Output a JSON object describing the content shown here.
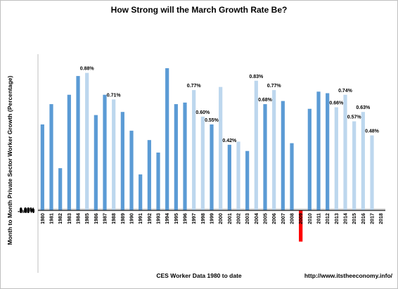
{
  "chart_data": {
    "type": "bar",
    "title": "How Strong will the March Growth Rate Be?",
    "xlabel": "CES Worker Data 1980 to date",
    "ylabel": "Month to Month Private Sector Worker Growth (Percentage)",
    "source": "http://www.itstheeconomy.info/",
    "ylim": [
      -0.4,
      1.0
    ],
    "yticks": [
      "-0.40%",
      "-0.20%",
      "0.00%",
      "0.20%",
      "0.40%",
      "0.60%",
      "0.80%",
      "1.00%"
    ],
    "grid": true,
    "categories": [
      "1980",
      "1981",
      "1982",
      "1983",
      "1984",
      "1985",
      "1986",
      "1987",
      "1988",
      "1989",
      "1990",
      "1991",
      "1992",
      "1993",
      "1994",
      "1995",
      "1996",
      "1997",
      "1998",
      "1999",
      "2000",
      "2001",
      "2002",
      "2003",
      "2004",
      "2005",
      "2006",
      "2007",
      "2008",
      "2009",
      "2010",
      "2011",
      "2012",
      "2013",
      "2014",
      "2015",
      "2016",
      "2017",
      "2018"
    ],
    "values": [
      0.55,
      0.68,
      0.27,
      0.74,
      0.86,
      0.88,
      0.61,
      0.74,
      0.71,
      0.63,
      0.51,
      0.23,
      0.45,
      0.37,
      0.91,
      0.68,
      0.69,
      0.77,
      0.6,
      0.55,
      0.79,
      0.42,
      0.44,
      0.38,
      0.83,
      0.68,
      0.77,
      0.7,
      0.43,
      -0.2,
      0.65,
      0.76,
      0.75,
      0.66,
      0.74,
      0.57,
      0.63,
      0.48,
      null
    ],
    "bar_shade": [
      "dark",
      "dark",
      "dark",
      "dark",
      "dark",
      "light",
      "dark",
      "dark",
      "light",
      "dark",
      "dark",
      "dark",
      "dark",
      "dark",
      "dark",
      "dark",
      "dark",
      "light",
      "light",
      "dark",
      "light",
      "dark",
      "light",
      "dark",
      "light",
      "dark",
      "light",
      "dark",
      "dark",
      "red",
      "dark",
      "dark",
      "dark",
      "light",
      "light",
      "light",
      "light",
      "light",
      "none"
    ],
    "data_labels": [
      "",
      "",
      "",
      "",
      "",
      "0.88%",
      "",
      "",
      "0.71%",
      "",
      "",
      "",
      "",
      "",
      "",
      "",
      "",
      "0.77%",
      "0.60%",
      "0.55%",
      "",
      "0.42%",
      "",
      "",
      "0.83%",
      "0.68%",
      "0.77%",
      "",
      "",
      "",
      "",
      "",
      "",
      "0.66%",
      "0.74%",
      "0.57%",
      "0.63%",
      "0.48%",
      ""
    ],
    "colors": {
      "dark": "#5b9bd5",
      "light": "#bdd7ee",
      "red": "#ff0000",
      "grid": "#d9d9d9",
      "axis": "#000000"
    }
  }
}
